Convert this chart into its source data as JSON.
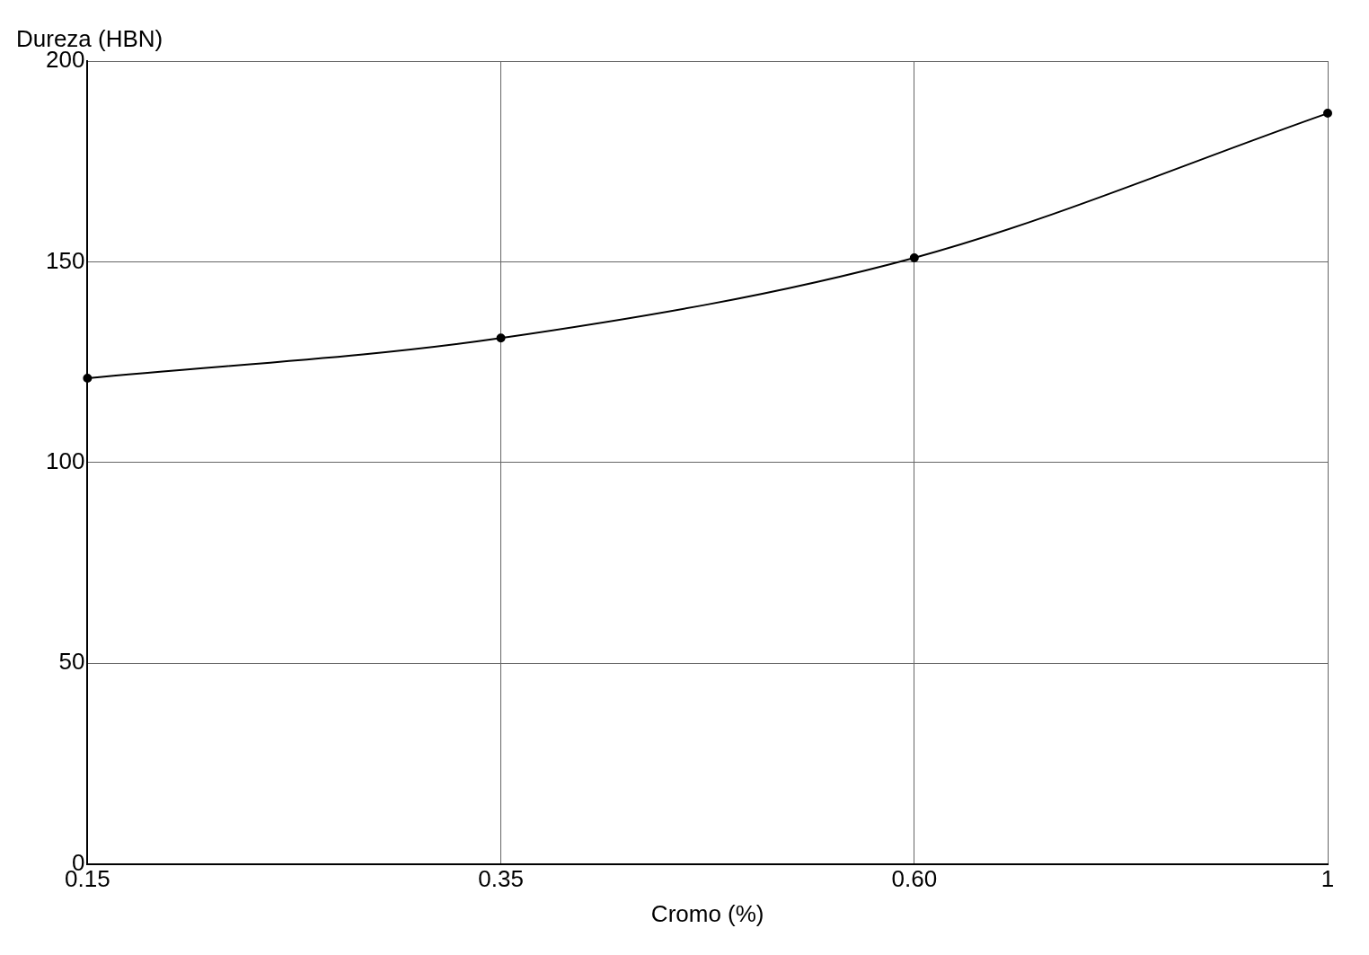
{
  "chart_data": {
    "type": "line",
    "xlabel": "Cromo (%)",
    "ylabel": "Dureza (HBN)",
    "categories": [
      "0.15",
      "0.35",
      "0.60",
      "1"
    ],
    "series": [
      {
        "color": "#000000",
        "values": [
          121,
          131,
          151,
          187
        ]
      }
    ],
    "ylim": [
      0,
      200
    ],
    "yticks": [
      0,
      50,
      100,
      150,
      200
    ],
    "grid": true,
    "marker": "circle",
    "line_style": "solid",
    "legend": false
  }
}
